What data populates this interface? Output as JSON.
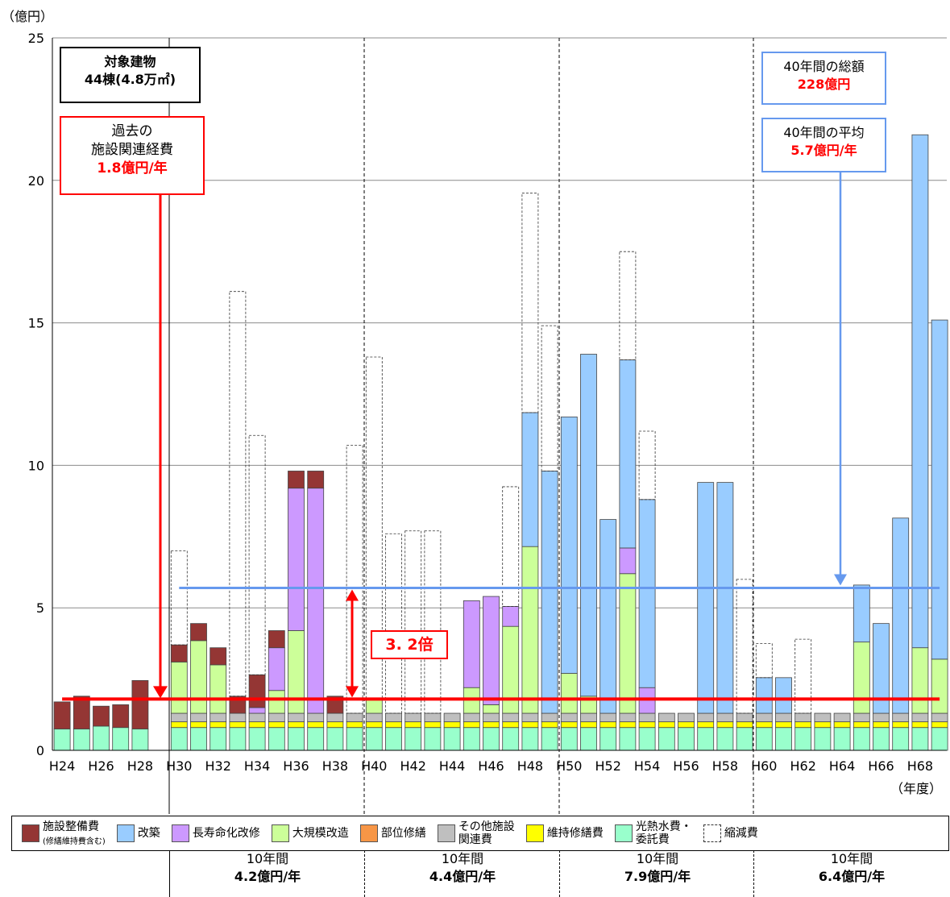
{
  "chart_data": {
    "type": "bar",
    "stacked": true,
    "y_unit_label": "（億円）",
    "x_unit_label": "（年度）",
    "ylim": [
      0,
      25
    ],
    "yticks": [
      0,
      5,
      10,
      15,
      20,
      25
    ],
    "grid": true,
    "categories": [
      "H24",
      "H25",
      "H26",
      "H27",
      "H28",
      "H29",
      "H30",
      "H31",
      "H32",
      "H33",
      "H34",
      "H35",
      "H36",
      "H37",
      "H38",
      "H39",
      "H40",
      "H41",
      "H42",
      "H43",
      "H44",
      "H45",
      "H46",
      "H47",
      "H48",
      "H49",
      "H50",
      "H51",
      "H52",
      "H53",
      "H54",
      "H55",
      "H56",
      "H57",
      "H58",
      "H59",
      "H60",
      "H61",
      "H62",
      "H63",
      "H64",
      "H65",
      "H66",
      "H67",
      "H68",
      "H69"
    ],
    "x_tick_labels": [
      "H24",
      "H26",
      "H28",
      "H30",
      "H32",
      "H34",
      "H36",
      "H38",
      "H40",
      "H42",
      "H44",
      "H46",
      "H48",
      "H50",
      "H52",
      "H54",
      "H56",
      "H58",
      "H60",
      "H62",
      "H64",
      "H66",
      "H68"
    ],
    "series": [
      {
        "name": "光熱水費・委託費",
        "color": "#99ffcc",
        "values": [
          0.75,
          0.75,
          0.85,
          0.8,
          0.75,
          null,
          0.8,
          0.8,
          0.8,
          0.8,
          0.8,
          0.8,
          0.8,
          0.8,
          0.8,
          0.8,
          0.8,
          0.8,
          0.8,
          0.8,
          0.8,
          0.8,
          0.8,
          0.8,
          0.8,
          0.8,
          0.8,
          0.8,
          0.8,
          0.8,
          0.8,
          0.8,
          0.8,
          0.8,
          0.8,
          0.8,
          0.8,
          0.8,
          0.8,
          0.8,
          0.8,
          0.8,
          0.8,
          0.8,
          0.8,
          0.8
        ]
      },
      {
        "name": "維持修繕費",
        "color": "#ffff00",
        "values": [
          0,
          0,
          0,
          0,
          0,
          null,
          0.2,
          0.2,
          0.2,
          0.2,
          0.2,
          0.2,
          0.2,
          0.2,
          0.2,
          0.2,
          0.2,
          0.2,
          0.2,
          0.2,
          0.2,
          0.2,
          0.2,
          0.2,
          0.2,
          0.2,
          0.2,
          0.2,
          0.2,
          0.2,
          0.2,
          0.2,
          0.2,
          0.2,
          0.2,
          0.2,
          0.2,
          0.2,
          0.2,
          0.2,
          0.2,
          0.2,
          0.2,
          0.2,
          0.2,
          0.2
        ]
      },
      {
        "name": "その他施設関連費",
        "color": "#bfbfbf",
        "values": [
          0,
          0,
          0,
          0,
          0,
          null,
          0.3,
          0.3,
          0.3,
          0.3,
          0.3,
          0.3,
          0.3,
          0.3,
          0.3,
          0.3,
          0.3,
          0.3,
          0.3,
          0.3,
          0.3,
          0.3,
          0.3,
          0.3,
          0.3,
          0.3,
          0.3,
          0.3,
          0.3,
          0.3,
          0.3,
          0.3,
          0.3,
          0.3,
          0.3,
          0.3,
          0.3,
          0.3,
          0.3,
          0.3,
          0.3,
          0.3,
          0.3,
          0.3,
          0.3,
          0.3
        ]
      },
      {
        "name": "部位修繕",
        "color": "#f79646",
        "values": [
          0,
          0,
          0,
          0,
          0,
          null,
          0,
          0,
          0,
          0,
          0,
          0,
          0,
          0,
          0,
          0,
          0,
          0,
          0,
          0,
          0,
          0,
          0,
          0,
          0,
          0,
          0,
          0,
          0,
          0,
          0,
          0,
          0,
          0,
          0,
          0,
          0,
          0,
          0,
          0,
          0,
          0,
          0,
          0,
          0,
          0
        ]
      },
      {
        "name": "大規模改造",
        "color": "#ccff99",
        "values": [
          0,
          0,
          0,
          0,
          0,
          null,
          1.8,
          2.55,
          1.7,
          0,
          0,
          0.8,
          2.9,
          0,
          0,
          0,
          0.5,
          0,
          0,
          0,
          0,
          0.9,
          0.3,
          3.05,
          5.85,
          0,
          1.4,
          0.6,
          0,
          4.9,
          0,
          0,
          0,
          0,
          0,
          0,
          0,
          0,
          0,
          0,
          0,
          2.5,
          0,
          0,
          2.3,
          1.9
        ]
      },
      {
        "name": "長寿命化改修",
        "color": "#cc99ff",
        "values": [
          0,
          0,
          0,
          0,
          0,
          null,
          0,
          0,
          0,
          0,
          0.2,
          1.5,
          5.0,
          7.9,
          0,
          0,
          0,
          0,
          0,
          0,
          0,
          3.05,
          3.8,
          0.7,
          0,
          0,
          0,
          0,
          0,
          0.9,
          0.9,
          0,
          0,
          0,
          0,
          0,
          0,
          0,
          0,
          0,
          0,
          0,
          0,
          0,
          0,
          0
        ]
      },
      {
        "name": "改築",
        "color": "#99ccff",
        "values": [
          0,
          0,
          0,
          0,
          0,
          null,
          0,
          0,
          0,
          0,
          0,
          0,
          0,
          0,
          0,
          0,
          0,
          0,
          0,
          0,
          0,
          0,
          0,
          0,
          4.7,
          8.5,
          9.0,
          12.0,
          6.8,
          6.6,
          6.6,
          0,
          0,
          8.1,
          8.1,
          0,
          1.25,
          1.25,
          0,
          0,
          0,
          2.0,
          3.15,
          6.85,
          18.0,
          11.9
        ]
      },
      {
        "name": "施設整備費（修繕維持費含む）",
        "color": "#943634",
        "values": [
          0.95,
          1.15,
          0.7,
          0.8,
          1.7,
          null,
          0.6,
          0.6,
          0.6,
          0.6,
          1.15,
          0.6,
          0.6,
          0.6,
          0.6,
          0,
          0,
          0,
          0,
          0,
          0,
          0,
          0,
          0,
          0,
          0,
          0,
          0,
          0,
          0,
          0,
          0,
          0,
          0,
          0,
          0,
          0,
          0,
          0,
          0,
          0,
          0,
          0,
          0,
          0,
          0
        ]
      },
      {
        "name": "縮減費",
        "color": "#ffffff",
        "dashed": true,
        "values": [
          0,
          0,
          0,
          0,
          0,
          null,
          3.3,
          0,
          0,
          14.2,
          8.4,
          0,
          0,
          0,
          0,
          9.4,
          12.0,
          6.3,
          6.4,
          6.4,
          0,
          0,
          0,
          4.2,
          7.7,
          5.1,
          0,
          0,
          0,
          3.8,
          2.4,
          0,
          0,
          0,
          0,
          4.7,
          1.2,
          0,
          2.6,
          0,
          0,
          0,
          0,
          0,
          0,
          0
        ]
      }
    ],
    "annotations": {
      "past_avg_line": 1.8,
      "future_avg_line": 5.7,
      "ratio_label": "3. 2倍"
    }
  },
  "boxes": {
    "target_title": "対象建物",
    "target_detail": "44棟(4.8万㎡)",
    "past_l1": "過去の",
    "past_l2": "施設関連経費",
    "past_value": "1.8億円/年",
    "total_l1": "40年間の総額",
    "total_value": "228億円",
    "avg_l1": "40年間の平均",
    "avg_value": "5.7億円/年"
  },
  "legend": [
    {
      "label": "施設整備費",
      "sub": "(修繕維持費含む)",
      "color": "#943634"
    },
    {
      "label": "改築",
      "color": "#99ccff"
    },
    {
      "label": "長寿命化改修",
      "color": "#cc99ff"
    },
    {
      "label": "大規模改造",
      "color": "#ccff99"
    },
    {
      "label": "部位修繕",
      "color": "#f79646"
    },
    {
      "label": "その他施設\n関連費",
      "color": "#bfbfbf"
    },
    {
      "label": "維持修繕費",
      "color": "#ffff00"
    },
    {
      "label": "光熱水費・\n委託費",
      "color": "#99ffcc"
    },
    {
      "label": "縮減費",
      "color": "#ffffff",
      "dashed": true
    }
  ],
  "periods": [
    {
      "label": "10年間",
      "value": "4.2億円/年"
    },
    {
      "label": "10年間",
      "value": "4.4億円/年"
    },
    {
      "label": "10年間",
      "value": "7.9億円/年"
    },
    {
      "label": "10年間",
      "value": "6.4億円/年"
    }
  ]
}
